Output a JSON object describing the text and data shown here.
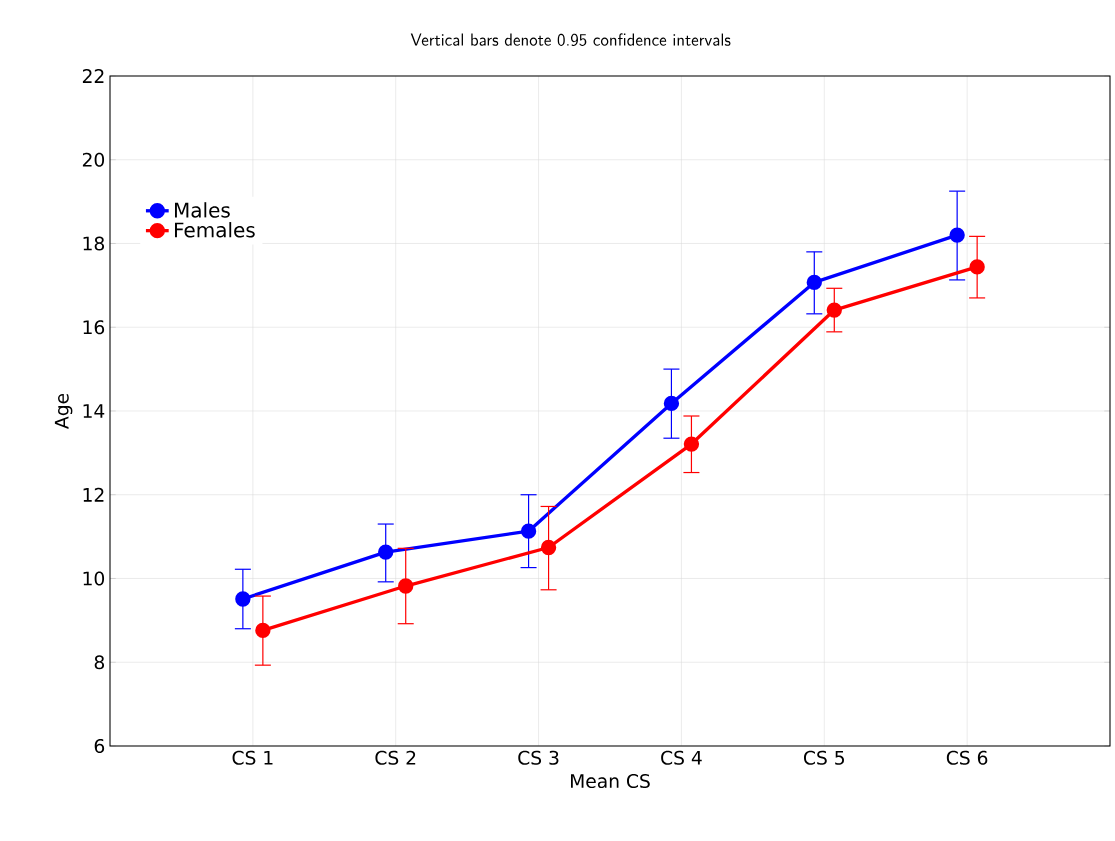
{
  "chart_data": {
    "type": "line",
    "title": "Vertical bars denote 0.95 confidence intervals",
    "xlabel": "Mean CS",
    "ylabel": "Age",
    "categories": [
      "CS 1",
      "CS 2",
      "CS 3",
      "CS 4",
      "CS 5",
      "CS 6"
    ],
    "series": [
      {
        "name": "Males",
        "color": "#0000ff",
        "values": [
          9.51,
          10.63,
          11.13,
          14.18,
          17.07,
          18.2
        ],
        "errors": [
          [
            8.8,
            10.22
          ],
          [
            9.92,
            11.3
          ],
          [
            10.26,
            12.0
          ],
          [
            13.35,
            15.0
          ],
          [
            16.32,
            17.8
          ],
          [
            17.13,
            19.25
          ]
        ]
      },
      {
        "name": "Females",
        "color": "#ff0000",
        "values": [
          8.76,
          9.82,
          10.74,
          13.21,
          16.41,
          17.44
        ],
        "errors": [
          [
            7.93,
            9.58
          ],
          [
            8.92,
            10.72
          ],
          [
            9.73,
            11.72
          ],
          [
            12.53,
            13.88
          ],
          [
            15.89,
            16.93
          ],
          [
            16.7,
            18.17
          ]
        ]
      }
    ],
    "ylim": [
      6,
      22
    ],
    "yticks": [
      6,
      8,
      10,
      12,
      14,
      16,
      18,
      20,
      22
    ],
    "grid": true,
    "legend": "top left",
    "marker": "circle",
    "line_style": "solid"
  }
}
